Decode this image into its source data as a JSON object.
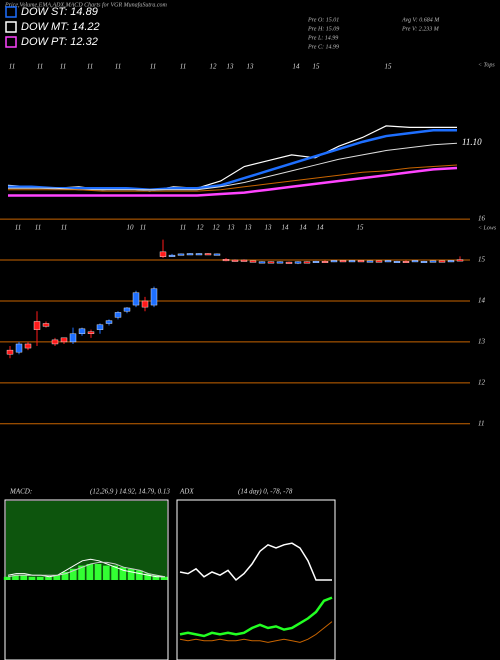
{
  "header": {
    "title": "Price,Volume,EMA,ADX,MACD Charts for VGR MunafaSutra.com",
    "legend": [
      {
        "label": "DOW ST: 14.89",
        "color": "#1e6fff"
      },
      {
        "label": "DOW MT: 14.22",
        "color": "#ffffff"
      },
      {
        "label": "DOW PT: 12.32",
        "color": "#ff44ff"
      }
    ],
    "stats": [
      "Pre  O: 15.01",
      "Avg V: 0.684  M",
      "Pre  H: 15.09",
      "Pre  V: 2.233  M",
      "Pre  L: 14.99",
      "Pre  C: 14.99"
    ]
  },
  "chart_data": [
    {
      "type": "line",
      "annotation": "< Tops",
      "value_label": "11.10",
      "ylim": [
        0,
        100
      ],
      "date_labels": [
        "11",
        "11",
        "11",
        "11",
        "11",
        "11",
        "11",
        "12",
        "13",
        "13",
        "14",
        "15",
        "15"
      ],
      "series": [
        {
          "color": "#ffffff",
          "width": 1.2,
          "values": [
            17,
            16,
            15,
            16,
            14,
            15,
            13,
            16,
            15,
            20,
            30,
            34,
            38,
            36,
            44,
            50,
            58,
            57,
            57,
            57
          ]
        },
        {
          "color": "#1e6fff",
          "width": 2.5,
          "values": [
            16,
            16,
            15,
            15,
            15,
            15,
            14,
            15,
            15,
            17,
            22,
            27,
            32,
            37,
            42,
            47,
            51,
            53,
            55,
            55
          ]
        },
        {
          "color": "#dddddd",
          "width": 1,
          "values": [
            15,
            15,
            15,
            14,
            14,
            14,
            14,
            14,
            14,
            16,
            19,
            23,
            27,
            31,
            35,
            38,
            41,
            43,
            45,
            46
          ]
        },
        {
          "color": "#c86400",
          "width": 1,
          "values": [
            14,
            14,
            14,
            14,
            13,
            13,
            13,
            13,
            13,
            14,
            16,
            18,
            20,
            22,
            24,
            26,
            27,
            29,
            30,
            31
          ]
        },
        {
          "color": "#ff44ff",
          "width": 2.5,
          "values": [
            10,
            10,
            10,
            10,
            10,
            10,
            10,
            10,
            10,
            11,
            12,
            14,
            16,
            18,
            20,
            22,
            24,
            26,
            28,
            29
          ]
        }
      ]
    },
    {
      "type": "candlestick",
      "annotation": "< Lows",
      "ylim": [
        10.8,
        16.1
      ],
      "yticks": [
        11,
        12,
        13,
        14,
        15,
        16
      ],
      "grid": true,
      "grid_color": "#c86400",
      "up_color": "#1e6fff",
      "down_color": "#ff1a1a",
      "date_labels": [
        "11",
        "11",
        "11",
        "10",
        "11",
        "11",
        "12",
        "12",
        "13",
        "13",
        "13",
        "14",
        "14",
        "14",
        "15"
      ],
      "open": [
        12.8,
        12.75,
        12.95,
        13.5,
        13.45,
        13.05,
        13.1,
        13.0,
        13.2,
        13.25,
        13.3,
        13.45,
        13.6,
        13.75,
        13.9,
        14.0,
        13.9,
        15.2,
        15.1,
        15.14,
        15.15,
        15.15,
        15.16,
        15.15,
        15.02,
        15.0,
        15.0,
        14.98,
        14.95,
        14.96,
        14.95,
        14.95,
        14.92,
        14.96,
        14.96,
        14.97,
        14.98,
        14.99,
        14.98,
        14.99,
        14.97,
        14.98,
        14.97,
        14.96,
        14.97,
        14.98,
        14.96,
        14.97,
        14.98,
        14.97,
        15.01
      ],
      "high": [
        12.9,
        13.0,
        13.0,
        13.75,
        13.5,
        13.1,
        13.1,
        13.35,
        13.35,
        13.3,
        13.45,
        13.55,
        13.75,
        13.85,
        14.25,
        14.1,
        14.35,
        15.5,
        15.15,
        15.16,
        15.17,
        15.17,
        15.17,
        15.16,
        15.05,
        15.02,
        15.02,
        15.0,
        14.97,
        14.97,
        14.97,
        14.96,
        14.97,
        14.97,
        14.98,
        14.99,
        15.0,
        15.0,
        15.0,
        15.0,
        14.99,
        15.0,
        15.0,
        14.98,
        14.99,
        15.0,
        14.98,
        14.99,
        15.0,
        15.0,
        15.09
      ],
      "low": [
        12.6,
        12.7,
        12.8,
        12.9,
        13.35,
        12.9,
        12.95,
        12.95,
        13.15,
        13.1,
        13.2,
        13.4,
        13.55,
        13.7,
        13.85,
        13.75,
        13.85,
        15.05,
        15.08,
        15.12,
        15.14,
        15.14,
        15.14,
        15.13,
        14.97,
        14.96,
        14.97,
        14.95,
        14.93,
        14.93,
        14.93,
        14.93,
        14.9,
        14.94,
        14.94,
        14.95,
        14.95,
        14.96,
        14.96,
        14.96,
        14.95,
        14.96,
        14.95,
        14.94,
        14.95,
        14.96,
        14.95,
        14.95,
        14.96,
        14.95,
        14.99
      ],
      "close": [
        12.7,
        12.95,
        12.85,
        13.3,
        13.38,
        12.95,
        13.0,
        13.2,
        13.32,
        13.2,
        13.42,
        13.52,
        13.72,
        13.83,
        14.2,
        13.85,
        14.3,
        15.08,
        15.12,
        15.15,
        15.16,
        15.16,
        15.15,
        15.15,
        14.98,
        14.97,
        14.99,
        14.97,
        14.96,
        14.94,
        14.96,
        14.94,
        14.96,
        14.95,
        14.97,
        14.96,
        14.99,
        14.97,
        14.99,
        14.97,
        14.98,
        14.97,
        14.99,
        14.97,
        14.96,
        14.99,
        14.97,
        14.98,
        14.97,
        14.99,
        14.99
      ]
    },
    {
      "type": "macd",
      "title": "MACD:",
      "subtitle": "(12,26,9 ) 14.92, 14.79, 0.13",
      "ylim": [
        -0.5,
        0.5
      ],
      "bg_color": "#0d550d",
      "bar_color": "#33ff33",
      "histogram": [
        0.02,
        0.03,
        0.03,
        0.02,
        0.02,
        0.02,
        0.03,
        0.05,
        0.07,
        0.09,
        0.1,
        0.1,
        0.09,
        0.09,
        0.08,
        0.07,
        0.06,
        0.04,
        0.03,
        0.02
      ],
      "series": [
        {
          "color": "#ffffff",
          "width": 1,
          "values": [
            0.03,
            0.04,
            0.04,
            0.03,
            0.03,
            0.02,
            0.03,
            0.06,
            0.09,
            0.12,
            0.13,
            0.12,
            0.1,
            0.08,
            0.06,
            0.05,
            0.04,
            0.03,
            0.02,
            0.02
          ]
        },
        {
          "color": "#cccccc",
          "width": 1,
          "values": [
            0.02,
            0.03,
            0.03,
            0.03,
            0.03,
            0.03,
            0.03,
            0.04,
            0.06,
            0.08,
            0.1,
            0.11,
            0.11,
            0.1,
            0.08,
            0.07,
            0.06,
            0.04,
            0.03,
            0.02
          ]
        }
      ]
    },
    {
      "type": "line",
      "title": "ADX",
      "subtitle": "(14 day) 0, -78, -78",
      "ylim": [
        0,
        100
      ],
      "series": [
        {
          "color": "#ffffff",
          "width": 1.5,
          "values": [
            55,
            54,
            57,
            52,
            55,
            53,
            56,
            50,
            54,
            60,
            68,
            72,
            70,
            72,
            73,
            70,
            62,
            50,
            50,
            50
          ]
        },
        {
          "color": "#22ff22",
          "width": 2.5,
          "values": [
            16,
            17,
            16,
            15,
            17,
            16,
            17,
            16,
            17,
            20,
            22,
            20,
            21,
            19,
            20,
            23,
            26,
            30,
            37,
            39
          ]
        },
        {
          "color": "#c86400",
          "width": 1,
          "values": [
            13,
            12,
            13,
            12,
            12,
            13,
            12,
            12,
            13,
            12,
            12,
            11,
            12,
            13,
            12,
            11,
            13,
            16,
            20,
            24
          ]
        }
      ]
    }
  ]
}
